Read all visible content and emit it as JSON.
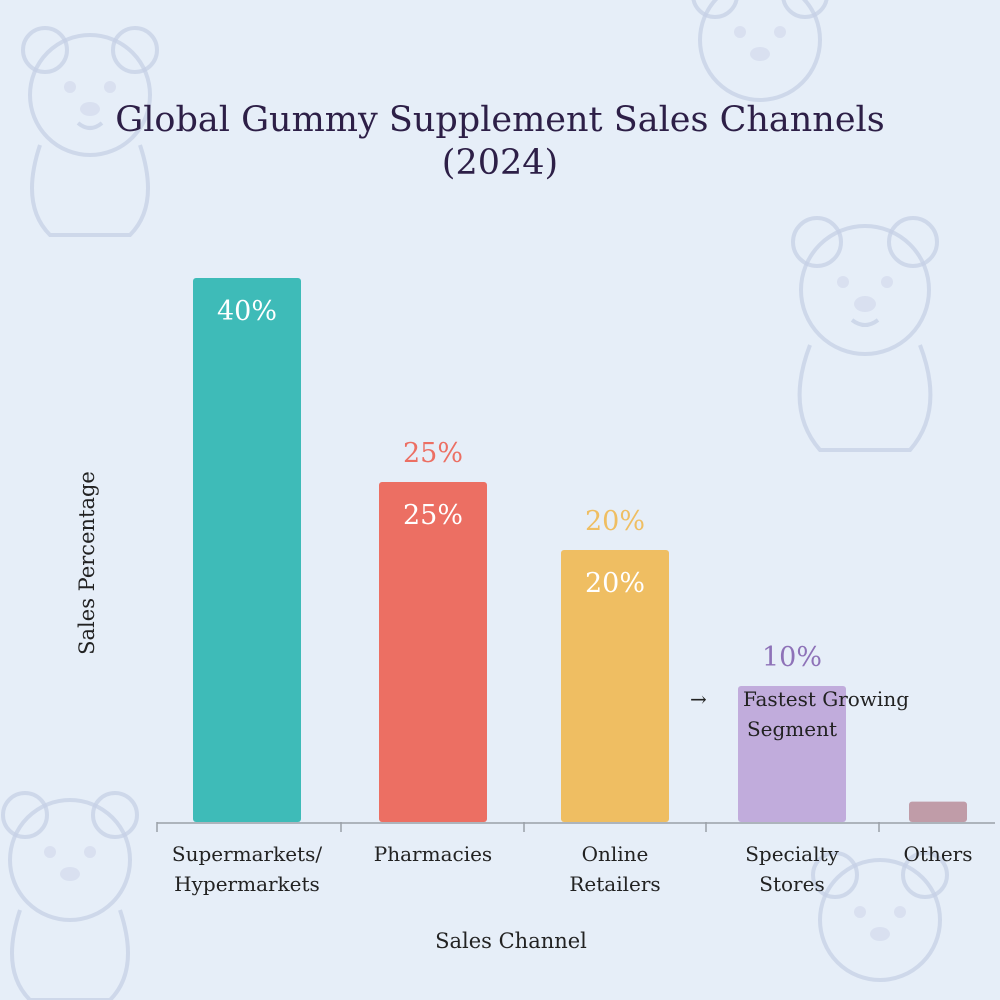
{
  "chart_data": {
    "type": "bar",
    "title": "Global Gummy Supplement Sales Channels",
    "subtitle": "(2024)",
    "xlabel": "Sales Channel",
    "ylabel": "Sales Percentage",
    "ylim": [
      0,
      40
    ],
    "grid": false,
    "legend": "none",
    "categories": [
      [
        "Supermarkets/",
        "Hypermarkets"
      ],
      [
        "Pharmacies"
      ],
      [
        "Online",
        "Retailers"
      ],
      [
        "Specialty",
        "Stores"
      ],
      [
        "Others"
      ]
    ],
    "values": [
      40,
      25,
      20,
      10,
      1.5
    ],
    "colors": [
      "#3ebbb8",
      "#ec6f63",
      "#efbe62",
      "#c1acdc",
      "#c09ca8"
    ],
    "top_label_colors": [
      "#ffffff",
      "#ec6f63",
      "#efbe62",
      "#8e72b8",
      "#ffffff"
    ],
    "inside_labels": [
      "40%",
      "25%",
      "20%",
      "",
      ""
    ],
    "top_labels": [
      "",
      "25%",
      "20%",
      "10%",
      ""
    ],
    "annotation": {
      "category_index": 3,
      "arrow": "→",
      "lines": [
        "Fastest Growing",
        "Segment"
      ]
    }
  }
}
